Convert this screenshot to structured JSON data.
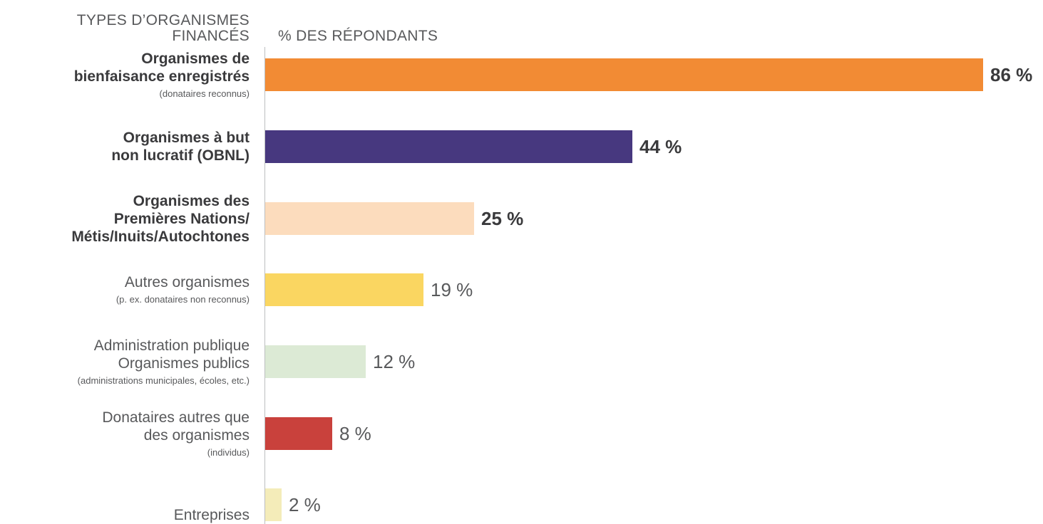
{
  "chart_data": {
    "type": "bar",
    "orientation": "horizontal",
    "category_axis_label_lines": [
      "TYPES D’ORGANISMES",
      "FINANCÉS"
    ],
    "value_axis_label": "% DES RÉPONDANTS",
    "xlim": [
      0,
      86
    ],
    "bars": [
      {
        "label_lines": [
          "Organismes de",
          "bienfaisance enregistrés"
        ],
        "sublabel": "(donataires reconnus)",
        "value": 86,
        "value_label": "86 %",
        "color": "#f28b34",
        "bold": true
      },
      {
        "label_lines": [
          "Organismes à but",
          "non lucratif (OBNL)"
        ],
        "sublabel": "",
        "value": 44,
        "value_label": "44 %",
        "color": "#47387f",
        "bold": true
      },
      {
        "label_lines": [
          "Organismes des",
          "Premières Nations/",
          "Métis/Inuits/Autochtones"
        ],
        "sublabel": "",
        "value": 25,
        "value_label": "25 %",
        "color": "#fcdcbd",
        "bold": true
      },
      {
        "label_lines": [
          "Autres organismes"
        ],
        "sublabel": "(p. ex. donataires non reconnus)",
        "value": 19,
        "value_label": "19 %",
        "color": "#fad661",
        "bold": false
      },
      {
        "label_lines": [
          "Administration publique",
          "Organismes publics"
        ],
        "sublabel": "(administrations municipales, écoles, etc.)",
        "value": 12,
        "value_label": "12 %",
        "color": "#dcead5",
        "bold": false
      },
      {
        "label_lines": [
          "Donataires autres que",
          "des organismes"
        ],
        "sublabel": "(individus)",
        "value": 8,
        "value_label": "8 %",
        "color": "#c9413c",
        "bold": false
      },
      {
        "label_lines": [
          "Entreprises"
        ],
        "sublabel": "",
        "value": 2,
        "value_label": "2 %",
        "color": "#f4ecb9",
        "bold": false
      }
    ]
  }
}
